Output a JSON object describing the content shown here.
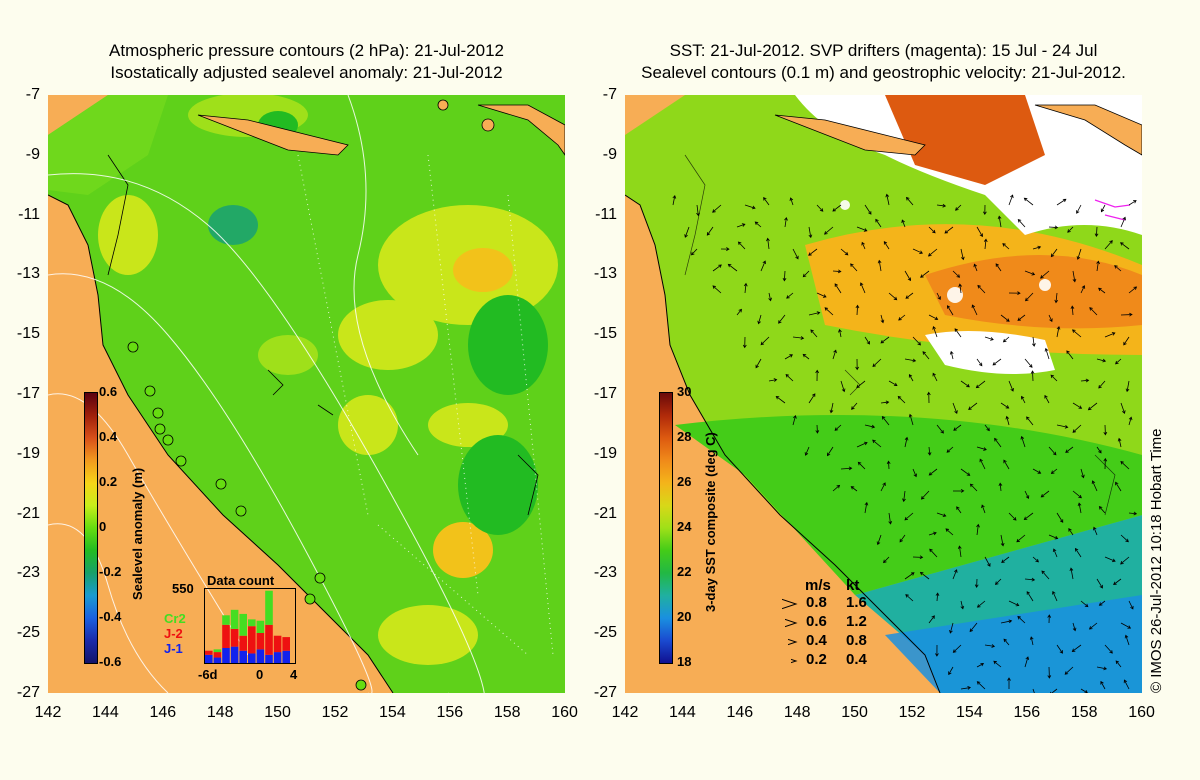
{
  "left_panel": {
    "title_line1": "Atmospheric pressure contours (2 hPa): 21-Jul-2012",
    "title_line2": "Isostatically adjusted sealevel anomaly: 21-Jul-2012",
    "colorbar_label": "Sealevel anomaly (m)",
    "colorbar_ticks": [
      "0.6",
      "0.4",
      "0.2",
      "0",
      "-0.2",
      "-0.4",
      "-0.6"
    ],
    "colorbar_colors": [
      "#5a0010",
      "#a0200a",
      "#d8501a",
      "#f29a1e",
      "#f7d418",
      "#c8ee1a",
      "#66dd10",
      "#22bb22",
      "#18a06a",
      "#1a9bd0",
      "#1a60e0",
      "#1a2aaa",
      "#14146a"
    ],
    "inset": {
      "title": "Data count",
      "max": "550",
      "legend": [
        {
          "label": "Cr2",
          "color": "#44dd22"
        },
        {
          "label": "J-2",
          "color": "#ee1111"
        },
        {
          "label": "J-1",
          "color": "#1122ee"
        }
      ],
      "xticks": [
        "-6d",
        "0",
        "4"
      ],
      "bars": [
        {
          "j1": 60,
          "j2": 30,
          "cr2": 0
        },
        {
          "j1": 40,
          "j2": 40,
          "cr2": 20
        },
        {
          "j1": 110,
          "j2": 170,
          "cr2": 70
        },
        {
          "j1": 120,
          "j2": 130,
          "cr2": 140
        },
        {
          "j1": 90,
          "j2": 110,
          "cr2": 160
        },
        {
          "j1": 70,
          "j2": 200,
          "cr2": 50
        },
        {
          "j1": 100,
          "j2": 120,
          "cr2": 90
        },
        {
          "j1": 60,
          "j2": 220,
          "cr2": 250
        },
        {
          "j1": 80,
          "j2": 120,
          "cr2": 0
        },
        {
          "j1": 90,
          "j2": 100,
          "cr2": 0
        }
      ]
    }
  },
  "right_panel": {
    "title_line1": "SST: 21-Jul-2012. SVP drifters (magenta): 15 Jul - 24 Jul",
    "title_line2": "Sealevel contours (0.1 m) and geostrophic velocity: 21-Jul-2012.",
    "colorbar_label": "3-day SST composite (deg C)",
    "colorbar_ticks": [
      "30",
      "28",
      "26",
      "24",
      "22",
      "20",
      "18"
    ],
    "colorbar_colors": [
      "#6a0a0a",
      "#b02a0a",
      "#dd5a10",
      "#f08a1a",
      "#f4b41a",
      "#d8d818",
      "#9fe018",
      "#44cc18",
      "#22b844",
      "#20b0a0",
      "#1a90e0",
      "#1a4ad0",
      "#101090"
    ],
    "velocity_legend": {
      "header_ms": "m/s",
      "header_kt": "kt",
      "rows": [
        {
          "ms": "0.8",
          "kt": "1.6"
        },
        {
          "ms": "0.6",
          "kt": "1.2"
        },
        {
          "ms": "0.4",
          "kt": "0.8"
        },
        {
          "ms": "0.2",
          "kt": "0.4"
        }
      ]
    }
  },
  "y_ticks": [
    "-7",
    "-9",
    "-11",
    "-13",
    "-15",
    "-17",
    "-19",
    "-21",
    "-23",
    "-25",
    "-27"
  ],
  "x_ticks": [
    "142",
    "144",
    "146",
    "148",
    "150",
    "152",
    "154",
    "156",
    "158",
    "160"
  ],
  "stamp": "© IMOS 26-Jul-2012 10:18 Hobart Time",
  "colors": {
    "land": "#f7ad55",
    "background": "#fdfdee"
  }
}
